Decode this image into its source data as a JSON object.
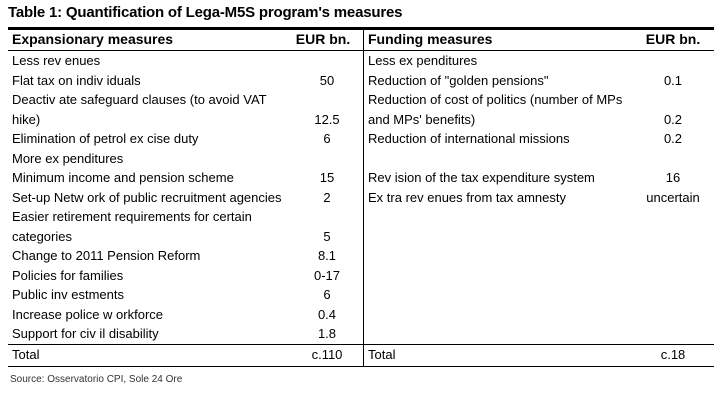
{
  "title": "Table 1: Quantification of Lega-M5S program's measures",
  "headers": {
    "left_label": "Expansionary measures",
    "left_unit": "EUR bn.",
    "right_label": "Funding measures",
    "right_unit": "EUR bn."
  },
  "left_rows": [
    {
      "label": "Less rev enues",
      "value": ""
    },
    {
      "label": "Flat tax on indiv iduals",
      "value": "50"
    },
    {
      "label": "Deactiv ate safeguard clauses (to avoid VAT",
      "value": ""
    },
    {
      "label": "hike)",
      "value": "12.5"
    },
    {
      "label": "Elimination of petrol ex cise duty",
      "value": "6"
    },
    {
      "label": "More ex penditures",
      "value": ""
    },
    {
      "label": "Minimum income and pension scheme",
      "value": "15"
    },
    {
      "label": "Set-up Netw ork of public recruitment agencies",
      "value": "2"
    },
    {
      "label": "Easier retirement requirements for certain",
      "value": ""
    },
    {
      "label": "categories",
      "value": "5"
    },
    {
      "label": "Change to 2011 Pension Reform",
      "value": "8.1"
    },
    {
      "label": "Policies for families",
      "value": "0-17"
    },
    {
      "label": "Public inv estments",
      "value": "6"
    },
    {
      "label": "Increase police w orkforce",
      "value": "0.4"
    },
    {
      "label": "Support for civ il disability",
      "value": "1.8"
    }
  ],
  "right_rows": [
    {
      "label": "Less ex penditures",
      "value": ""
    },
    {
      "label": "Reduction of \"golden pensions\"",
      "value": "0.1"
    },
    {
      "label": "Reduction of cost of politics (number of MPs",
      "value": ""
    },
    {
      "label": "and MPs' benefits)",
      "value": "0.2"
    },
    {
      "label": "Reduction of international missions",
      "value": "0.2"
    },
    {
      "label": "",
      "value": ""
    },
    {
      "label": "Rev ision of the tax expenditure system",
      "value": "16"
    },
    {
      "label": "Ex tra rev enues from tax amnesty",
      "value": "uncertain"
    }
  ],
  "totals": {
    "left_label": "Total",
    "left_value": "c.110",
    "right_label": "Total",
    "right_value": "c.18"
  },
  "source": "Source: Osservatorio CPI, Sole 24 Ore"
}
